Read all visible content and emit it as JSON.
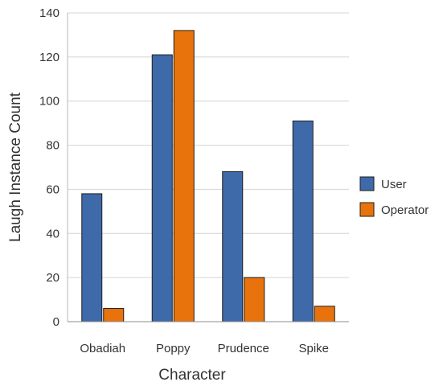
{
  "chart_data": {
    "type": "bar",
    "title": "",
    "xlabel": "Character",
    "ylabel": "Laugh Instance Count",
    "categories": [
      "Obadiah",
      "Poppy",
      "Prudence",
      "Spike"
    ],
    "series": [
      {
        "name": "User",
        "values": [
          58,
          121,
          68,
          91
        ],
        "color": "#3e6aaa"
      },
      {
        "name": "Operator",
        "values": [
          6,
          132,
          20,
          7
        ],
        "color": "#e8730c"
      }
    ],
    "ylim": [
      0,
      140
    ],
    "yticks": [
      0,
      20,
      40,
      60,
      80,
      100,
      120,
      140
    ],
    "grid": true,
    "legend_position": "right"
  }
}
